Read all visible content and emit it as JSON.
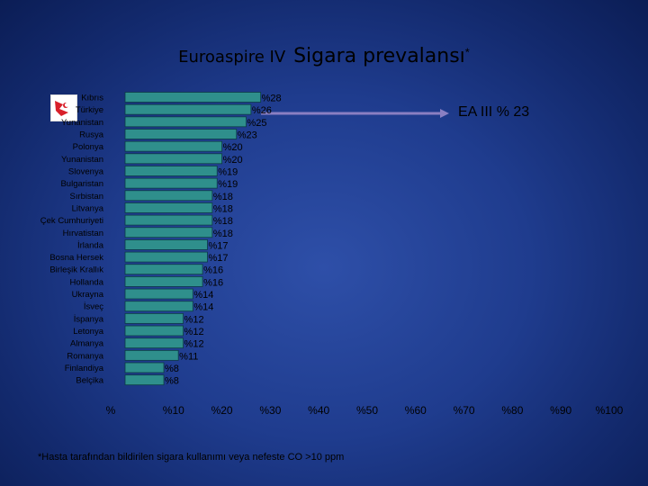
{
  "title": {
    "part1": "Euroaspire IV",
    "part2": "Sigara prevalansı",
    "marker": "*"
  },
  "annotation": "EA III % 23",
  "footnote": "*Hasta tarafından bildirilen sigara kullanımı veya nefeste CO >10 ppm",
  "colors": {
    "bar_fill": "#2f8f8c",
    "bar_edge": "#0c3b45",
    "arrow": "#8a7fc2",
    "text": "#000000"
  },
  "chart_data": {
    "type": "bar",
    "orientation": "horizontal",
    "title": "Euroaspire IV Sigara prevalansı*",
    "categories": [
      "Kıbrıs",
      "Türkiye",
      "Yunanistan",
      "Rusya",
      "Polonya",
      "Yunanistan",
      "Slovenya",
      "Bulgaristan",
      "Sırbistan",
      "Litvanya",
      "Çek Cumhuriyeti",
      "Hırvatistan",
      "İrlanda",
      "Bosna Hersek",
      "Birleşik Krallık",
      "Hollanda",
      "Ukrayna",
      "İsveç",
      "İspanya",
      "Letonya",
      "Almanya",
      "Romanya",
      "Finlandiya",
      "Belçika"
    ],
    "values": [
      28,
      26,
      25,
      23,
      20,
      20,
      19,
      19,
      18,
      18,
      18,
      18,
      17,
      17,
      16,
      16,
      14,
      14,
      12,
      12,
      12,
      11,
      8,
      8
    ],
    "value_labels": [
      "%28",
      "%26",
      "%25",
      "%23",
      "%20",
      "%20",
      "%19",
      "%19",
      "%18",
      "%18",
      "%18",
      "%18",
      "%17",
      "%17",
      "%16",
      "%16",
      "%14",
      "%14",
      "%12",
      "%12",
      "%12",
      "%11",
      "%8",
      "%8"
    ],
    "xticks": [
      0,
      10,
      20,
      30,
      40,
      50,
      60,
      70,
      80,
      90,
      100
    ],
    "xtick_labels": [
      "%",
      "%10",
      "%20",
      "%30",
      "%40",
      "%50",
      "%60",
      "%70",
      "%80",
      "%90",
      "%100"
    ],
    "xlim": [
      0,
      100
    ],
    "grid": false,
    "legend": false
  }
}
